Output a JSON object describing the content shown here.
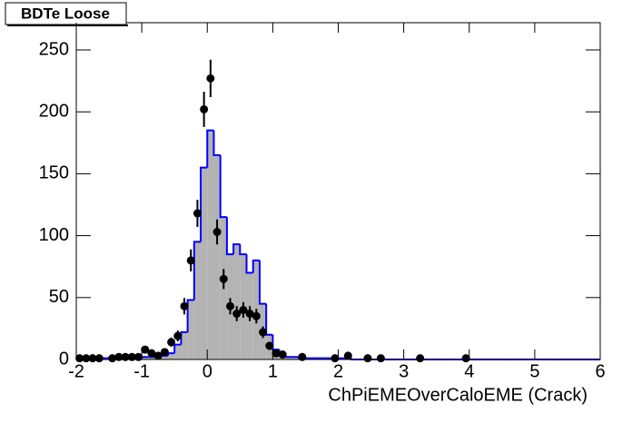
{
  "chart_data": {
    "type": "histogram",
    "title": "BDTe Loose",
    "x_label": "ChPiEMEOverCaloEME (Crack)",
    "bins": [
      -2.0,
      -1.9,
      -1.8,
      -1.7,
      -1.6,
      -1.5,
      -1.4,
      -1.3,
      -1.2,
      -1.1,
      -1.0,
      -0.9,
      -0.8,
      -0.7,
      -0.6,
      -0.5,
      -0.4,
      -0.3,
      -0.2,
      -0.1,
      0.0,
      0.1,
      0.2,
      0.3,
      0.4,
      0.5,
      0.6,
      0.7,
      0.8,
      0.9,
      1.0,
      1.1,
      1.2,
      1.3,
      1.4,
      1.5,
      1.6,
      1.7,
      1.8,
      1.9,
      2.0,
      2.1,
      2.2,
      2.3,
      2.4,
      2.5,
      2.6,
      2.7,
      2.8,
      2.9,
      3.0,
      3.1,
      3.2,
      3.3,
      3.4,
      3.5,
      3.6,
      3.7,
      3.8,
      3.9,
      4.0,
      4.1,
      4.2,
      4.3,
      4.4,
      4.5,
      4.6,
      4.7,
      4.8,
      4.9,
      5.0,
      5.1,
      5.2,
      5.3,
      5.4,
      5.5,
      5.6,
      5.7,
      5.8,
      5.9,
      6.0
    ],
    "values": [
      0,
      0,
      0,
      0,
      1,
      1,
      1,
      1,
      1,
      1,
      2,
      2,
      2,
      3,
      5,
      12,
      22,
      48,
      95,
      155,
      185,
      165,
      115,
      85,
      93,
      85,
      70,
      80,
      45,
      20,
      8,
      3,
      2,
      2,
      1,
      1,
      1,
      1,
      1,
      1,
      1,
      1,
      0,
      0,
      0,
      0,
      0,
      0,
      0,
      0,
      0,
      0,
      0,
      0,
      0,
      0,
      0,
      0,
      0,
      0,
      0,
      0,
      0,
      0,
      0,
      0,
      0,
      0,
      0,
      0,
      0,
      0,
      0,
      0,
      0,
      0,
      0,
      0,
      0,
      0
    ],
    "color": "#b3b3b3",
    "edge_color": "#0000ff",
    "points": {
      "color": "#000000",
      "x": [
        -1.95,
        -1.85,
        -1.75,
        -1.65,
        -1.45,
        -1.35,
        -1.25,
        -1.15,
        -1.05,
        -0.95,
        -0.85,
        -0.75,
        -0.65,
        -0.55,
        -0.45,
        -0.35,
        -0.25,
        -0.15,
        -0.05,
        0.05,
        0.15,
        0.25,
        0.35,
        0.45,
        0.55,
        0.65,
        0.75,
        0.85,
        0.95,
        1.05,
        1.15,
        1.45,
        1.95,
        2.15,
        2.45,
        2.65,
        3.25,
        3.95
      ],
      "values": [
        1,
        1,
        1,
        1,
        1,
        2,
        2,
        2,
        2,
        8,
        5,
        3,
        6,
        14,
        19,
        43,
        80,
        118,
        202,
        227,
        103,
        65,
        43,
        37,
        40,
        37,
        35,
        22,
        11,
        5,
        4,
        2,
        1,
        3,
        1,
        1,
        1,
        1
      ],
      "errors": [
        1,
        1,
        1,
        1,
        1,
        1.4,
        1.4,
        1.4,
        1.4,
        2.8,
        2.2,
        1.7,
        2.4,
        3.7,
        4.4,
        6.6,
        8.9,
        10.9,
        14.2,
        15.1,
        10.1,
        8.1,
        6.6,
        6.1,
        6.3,
        6.1,
        5.9,
        4.7,
        3.3,
        2.2,
        2,
        1.4,
        1,
        1.7,
        1,
        1,
        1,
        1
      ]
    },
    "xlim": [
      -2,
      6
    ],
    "ylim": [
      0,
      272
    ],
    "xticks": [
      -2,
      -1,
      0,
      1,
      2,
      3,
      4,
      5,
      6
    ],
    "yticks": [
      0,
      50,
      100,
      150,
      200,
      250
    ]
  }
}
